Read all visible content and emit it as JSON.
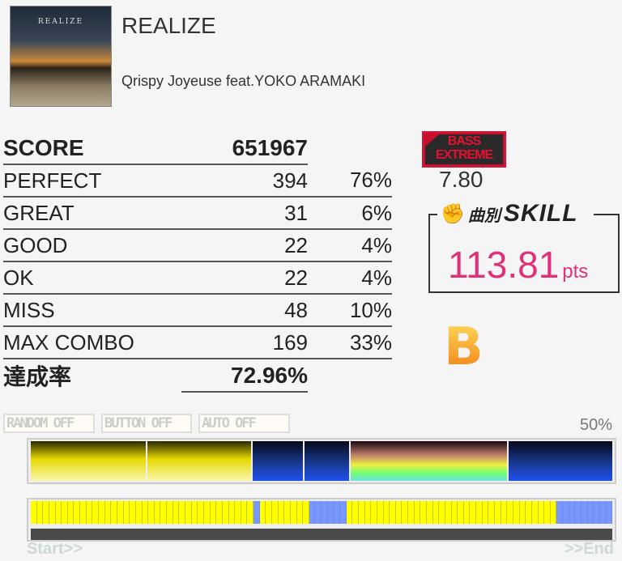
{
  "song": {
    "title": "REALIZE",
    "artist": "Qrispy Joyeuse feat.YOKO ARAMAKI",
    "jacket_text": "REALIZE"
  },
  "stats": {
    "score_label": "SCORE",
    "score": "651967",
    "rows": [
      {
        "label": "PERFECT",
        "count": "394",
        "pct": "76%"
      },
      {
        "label": "GREAT",
        "count": "31",
        "pct": "6%"
      },
      {
        "label": "GOOD",
        "count": "22",
        "pct": "4%"
      },
      {
        "label": "OK",
        "count": "22",
        "pct": "4%"
      },
      {
        "label": "MISS",
        "count": "48",
        "pct": "10%"
      },
      {
        "label": "MAX COMBO",
        "count": "169",
        "pct": "33%"
      }
    ],
    "achievement_label": "達成率",
    "achievement": "72.96%"
  },
  "difficulty": {
    "line1": "BASS",
    "line2": "EXTREME",
    "level": "7.80",
    "color": "#c8102e"
  },
  "skill": {
    "label_jp": "曲別",
    "label": "SKILL",
    "value": "113.81",
    "unit": "pts",
    "color": "#e0307a"
  },
  "rank": "B",
  "options": [
    "RANDOM OFF",
    "BUTTON OFF",
    "AUTO OFF"
  ],
  "progress_pct": "50%",
  "sections": [
    "yellow",
    "yellow",
    "blue",
    "blue",
    "rainbow",
    "blue"
  ],
  "cell_runs": [
    {
      "color": "yellow",
      "count": 36
    },
    {
      "color": "blue",
      "count": 1
    },
    {
      "color": "yellow",
      "count": 8
    },
    {
      "color": "blue",
      "count": 6
    },
    {
      "color": "yellow",
      "count": 34
    },
    {
      "color": "blue",
      "count": 9
    }
  ],
  "start_label": "Start>>",
  "end_label": ">>End"
}
